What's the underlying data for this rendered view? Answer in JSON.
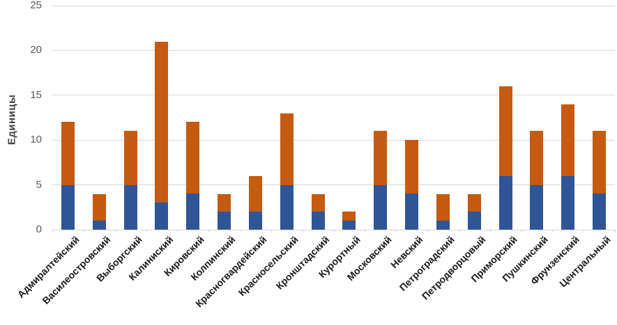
{
  "chart_data": {
    "type": "bar",
    "subtype": "stacked-column",
    "title": "",
    "xlabel": "",
    "ylabel": "Единицы",
    "ylim": [
      0,
      25
    ],
    "yticks": [
      0,
      5,
      10,
      15,
      20,
      25
    ],
    "grid": true,
    "legend_position": "none",
    "categories": [
      "Адмиралтейский",
      "Василеостровский",
      "Выборгский",
      "Калиниский",
      "Кировский",
      "Колпинский",
      "Красногвардейский",
      "Красносельский",
      "Кронштадский",
      "Курортный",
      "Московский",
      "Невский",
      "Петроградский",
      "Петродворцовый",
      "Приморский",
      "Пушкинский",
      "Фрунзенский",
      "Центральный"
    ],
    "series": [
      {
        "name": "segment-blue",
        "color": "#2F5597",
        "values": [
          5,
          1,
          5,
          3,
          4,
          2,
          2,
          5,
          2,
          1,
          5,
          4,
          1,
          2,
          6,
          5,
          6,
          4
        ]
      },
      {
        "name": "segment-orange",
        "color": "#C55A11",
        "values": [
          7,
          3,
          6,
          18,
          8,
          2,
          4,
          8,
          2,
          1,
          6,
          6,
          3,
          2,
          10,
          6,
          8,
          7
        ]
      }
    ],
    "totals": [
      12,
      4,
      11,
      21,
      12,
      4,
      6,
      13,
      4,
      2,
      11,
      10,
      4,
      4,
      16,
      11,
      14,
      11
    ]
  },
  "style": {
    "background": "#FFFFFF",
    "gridline_color": "#D9D9D9",
    "tick_label_color": "#595959",
    "axis_title_color": "#404040",
    "category_label_color": "#1A1A1A"
  }
}
